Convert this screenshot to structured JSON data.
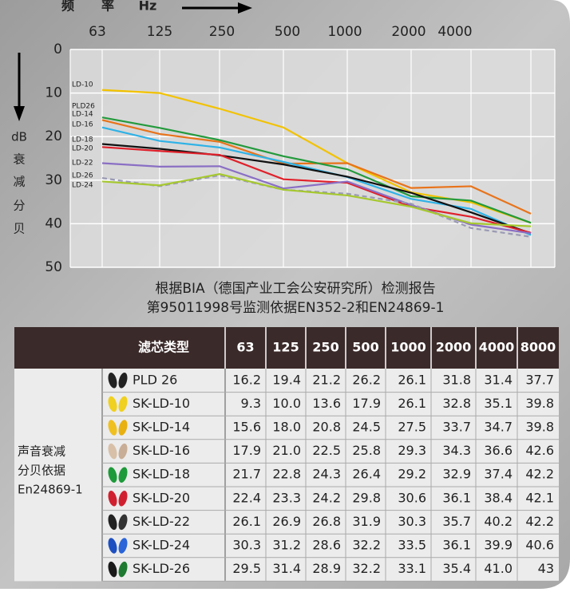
{
  "chart_data": {
    "type": "line",
    "x_label": [
      "频",
      "率",
      "Hz"
    ],
    "y_label": [
      "dB",
      "衰",
      "减",
      "分",
      "贝"
    ],
    "categories": [
      "63",
      "125",
      "250",
      "500",
      "1000",
      "2000",
      "4000",
      null
    ],
    "ylim": [
      0,
      50
    ],
    "yticks": [
      0,
      10,
      20,
      30,
      40,
      50
    ],
    "y_inverted": true,
    "grid": true,
    "series": [
      {
        "name": "LD-10",
        "color": "#f2c200",
        "values": [
          9.3,
          10.0,
          13.6,
          17.9,
          26.1,
          32.8,
          35.1,
          39.8
        ]
      },
      {
        "name": "PLD26",
        "color": "#e8731a",
        "values": [
          16.2,
          19.4,
          21.2,
          26.2,
          26.1,
          31.8,
          31.4,
          37.7
        ]
      },
      {
        "name": "LD-14",
        "color": "#239a3c",
        "values": [
          15.6,
          18.0,
          20.8,
          24.5,
          27.5,
          33.7,
          34.7,
          39.8
        ]
      },
      {
        "name": "LD-16",
        "color": "#2fb2e6",
        "values": [
          17.9,
          21.0,
          22.5,
          25.8,
          29.3,
          34.3,
          36.6,
          42.6
        ]
      },
      {
        "name": "LD-18",
        "color": "#111111",
        "values": [
          21.7,
          22.8,
          24.3,
          26.4,
          29.2,
          32.9,
          37.4,
          42.2
        ]
      },
      {
        "name": "LD-20",
        "color": "#e0202a",
        "values": [
          22.4,
          23.3,
          24.2,
          29.8,
          30.6,
          36.1,
          38.4,
          42.1
        ]
      },
      {
        "name": "LD-22",
        "color": "#8a6fc4",
        "values": [
          26.1,
          26.9,
          26.8,
          31.9,
          30.3,
          35.7,
          40.2,
          42.2
        ]
      },
      {
        "name": "LD-26",
        "color": "#9a9ab4",
        "dashed": true,
        "values": [
          29.5,
          31.4,
          28.9,
          32.2,
          33.1,
          35.4,
          41.0,
          43
        ]
      },
      {
        "name": "LD-24",
        "color": "#a6c82e",
        "values": [
          30.3,
          31.2,
          28.6,
          32.2,
          33.5,
          36.1,
          39.9,
          40.6
        ]
      }
    ],
    "notes": [
      "根据BIA（德国产业工会公安研究所）检测报告",
      "第95011998号监测依据EN352-2和EN24869-1"
    ]
  },
  "table": {
    "header": [
      "滤芯类型",
      "63",
      "125",
      "250",
      "500",
      "1000",
      "2000",
      "4000",
      "8000"
    ],
    "group_label": [
      "声音衰减",
      "分贝依据",
      "En24869-1"
    ],
    "rows": [
      [
        "PLD 26",
        "16.2",
        "19.4",
        "21.2",
        "26.2",
        "26.1",
        "31.8",
        "31.4",
        "37.7"
      ],
      [
        "SK-LD-10",
        "9.3",
        "10.0",
        "13.6",
        "17.9",
        "26.1",
        "32.8",
        "35.1",
        "39.8"
      ],
      [
        "SK-LD-14",
        "15.6",
        "18.0",
        "20.8",
        "24.5",
        "27.5",
        "33.7",
        "34.7",
        "39.8"
      ],
      [
        "SK-LD-16",
        "17.9",
        "21.0",
        "22.5",
        "25.8",
        "29.3",
        "34.3",
        "36.6",
        "42.6"
      ],
      [
        "SK-LD-18",
        "21.7",
        "22.8",
        "24.3",
        "26.4",
        "29.2",
        "32.9",
        "37.4",
        "42.2"
      ],
      [
        "SK-LD-20",
        "22.4",
        "23.3",
        "24.2",
        "29.8",
        "30.6",
        "36.1",
        "38.4",
        "42.1"
      ],
      [
        "SK-LD-22",
        "26.1",
        "26.9",
        "26.8",
        "31.9",
        "30.3",
        "35.7",
        "40.2",
        "42.2"
      ],
      [
        "SK-LD-24",
        "30.3",
        "31.2",
        "28.6",
        "32.2",
        "33.5",
        "36.1",
        "39.9",
        "40.6"
      ],
      [
        "SK-LD-26",
        "29.5",
        "31.4",
        "28.9",
        "32.2",
        "33.1",
        "35.4",
        "41.0",
        "43"
      ]
    ]
  }
}
